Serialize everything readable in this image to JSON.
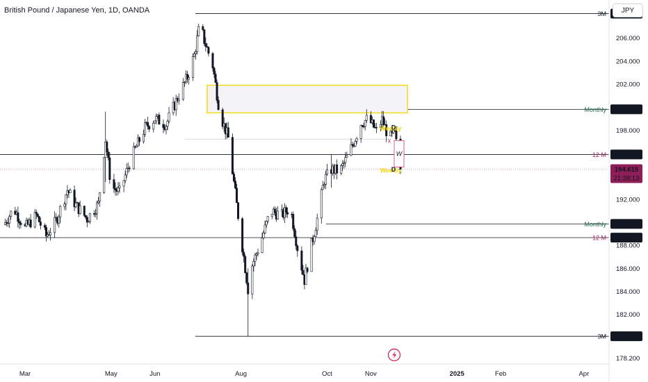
{
  "header": {
    "title": "British Pound / Japanese Yen, 1D, OANDA",
    "currency_button": "JPY"
  },
  "colors": {
    "candle": "#131722",
    "grid_line": "#131722",
    "supply_zone_border": "#f5d90a",
    "supply_zone_fill": "#f3f3f5",
    "monthly_label": "#1e6b4c",
    "twelve_m_label": "#b0245c",
    "weekly_label": "#f5d90a",
    "price_tag": "#131722",
    "current_price_tag": "#8e1e57"
  },
  "chart_data": {
    "type": "candlestick",
    "title": "British Pound / Japanese Yen, 1D, OANDA",
    "y_axis": {
      "ylim": [
        177.7,
        209.3
      ],
      "ticks": [
        "178.200",
        "180.000",
        "182.000",
        "184.000",
        "186.000",
        "188.000",
        "190.000",
        "192.000",
        "194.000",
        "196.000",
        "198.000",
        "200.000",
        "202.000",
        "204.000",
        "206.000"
      ]
    },
    "x_axis": {
      "ticks": [
        {
          "label": "Mar",
          "day": 0
        },
        {
          "label": "May",
          "day": 61
        },
        {
          "label": "Jun",
          "day": 92
        },
        {
          "label": "Aug",
          "day": 153
        },
        {
          "label": "Oct",
          "day": 214
        },
        {
          "label": "Nov",
          "day": 245
        },
        {
          "label": "2025",
          "day": 306
        },
        {
          "label": "Feb",
          "day": 337
        },
        {
          "label": "Apr",
          "day": 396
        }
      ]
    },
    "key_points": [
      {
        "day": -15,
        "price": 189.8
      },
      {
        "day": -8,
        "price": 191.2
      },
      {
        "day": 0,
        "price": 189.5
      },
      {
        "day": 8,
        "price": 190.6
      },
      {
        "day": 15,
        "price": 188.8
      },
      {
        "day": 22,
        "price": 190.1
      },
      {
        "day": 30,
        "price": 192.8
      },
      {
        "day": 36,
        "price": 191.5
      },
      {
        "day": 44,
        "price": 190.3
      },
      {
        "day": 52,
        "price": 191.6
      },
      {
        "day": 57,
        "price": 197.2
      },
      {
        "day": 61,
        "price": 193.1
      },
      {
        "day": 67,
        "price": 192.6
      },
      {
        "day": 75,
        "price": 195.5
      },
      {
        "day": 85,
        "price": 198.2
      },
      {
        "day": 92,
        "price": 199.0
      },
      {
        "day": 100,
        "price": 198.5
      },
      {
        "day": 108,
        "price": 200.8
      },
      {
        "day": 115,
        "price": 202.6
      },
      {
        "day": 120,
        "price": 204.5
      },
      {
        "day": 124,
        "price": 207.3
      },
      {
        "day": 127,
        "price": 205.8
      },
      {
        "day": 133,
        "price": 203.6
      },
      {
        "day": 138,
        "price": 199.5
      },
      {
        "day": 144,
        "price": 197.3
      },
      {
        "day": 150,
        "price": 191.5
      },
      {
        "day": 155,
        "price": 187.0
      },
      {
        "day": 158,
        "price": 184.2
      },
      {
        "day": 161,
        "price": 186.3
      },
      {
        "day": 167,
        "price": 188.3
      },
      {
        "day": 174,
        "price": 191.0
      },
      {
        "day": 182,
        "price": 190.6
      },
      {
        "day": 188,
        "price": 191.3
      },
      {
        "day": 193,
        "price": 187.8
      },
      {
        "day": 198,
        "price": 185.0
      },
      {
        "day": 202,
        "price": 187.5
      },
      {
        "day": 207,
        "price": 190.3
      },
      {
        "day": 212,
        "price": 193.7
      },
      {
        "day": 217,
        "price": 194.6
      },
      {
        "day": 223,
        "price": 194.4
      },
      {
        "day": 228,
        "price": 195.6
      },
      {
        "day": 233,
        "price": 197.0
      },
      {
        "day": 238,
        "price": 198.6
      },
      {
        "day": 243,
        "price": 199.0
      },
      {
        "day": 249,
        "price": 197.9
      },
      {
        "day": 253,
        "price": 198.9
      },
      {
        "day": 258,
        "price": 197.3
      },
      {
        "day": 262,
        "price": 197.6
      },
      {
        "day": 266,
        "price": 194.6
      }
    ],
    "current_price": 194.615,
    "levels": [
      {
        "label": "3M",
        "price": 208.12,
        "kind": "3m"
      },
      {
        "label": "Monthly",
        "price": 199.811,
        "kind": "monthly"
      },
      {
        "label": "12 M",
        "price": 195.886,
        "kind": "12m"
      },
      {
        "label": "Monthly",
        "price": 189.858,
        "kind": "monthly"
      },
      {
        "label": "12 M",
        "price": 188.666,
        "kind": "12m"
      },
      {
        "label": "3M",
        "price": 180.102,
        "kind": "3m"
      }
    ],
    "price_tags": [
      "208.120",
      "199.811",
      "195.886",
      "189.858",
      "188.666",
      "180.102"
    ],
    "current_tag": {
      "price": "194.615",
      "countdown": "21:38:13"
    },
    "supply_zone": {
      "day_from": 129,
      "day_to": 271,
      "price_top": 201.9,
      "price_bottom": 199.5
    },
    "weekly_labels": [
      "Weekly",
      "Weekly"
    ],
    "d_markers": [
      "D",
      "D"
    ],
    "x_marker": "x",
    "w_box_label": "W"
  }
}
